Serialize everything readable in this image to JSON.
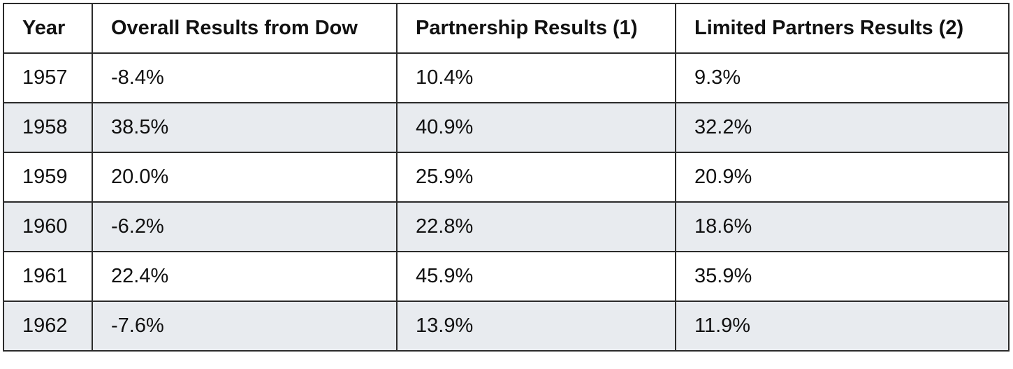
{
  "table": {
    "headers": [
      "Year",
      "Overall Results from Dow",
      "Partnership Results (1)",
      "Limited Partners Results (2)"
    ],
    "rows": [
      [
        "1957",
        "-8.4%",
        "10.4%",
        "9.3%"
      ],
      [
        "1958",
        "38.5%",
        "40.9%",
        "32.2%"
      ],
      [
        "1959",
        "20.0%",
        "25.9%",
        "20.9%"
      ],
      [
        "1960",
        "-6.2%",
        "22.8%",
        "18.6%"
      ],
      [
        "1961",
        "22.4%",
        "45.9%",
        "35.9%"
      ],
      [
        "1962",
        "-7.6%",
        "13.9%",
        "11.9%"
      ]
    ],
    "stripe_color": "#e8ebef",
    "border_color": "#2b2b2b"
  }
}
